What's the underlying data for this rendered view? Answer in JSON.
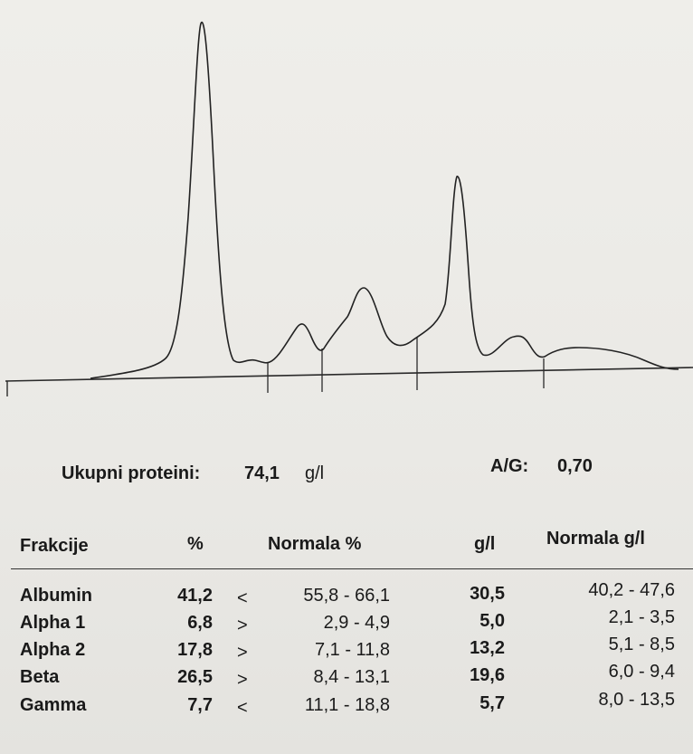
{
  "summary": {
    "total_label": "Ukupni proteini:",
    "total_value": "74,1",
    "total_unit": "g/l",
    "ag_label": "A/G:",
    "ag_value": "0,70"
  },
  "table": {
    "headers": {
      "fraction": "Frakcije",
      "percent": "%",
      "normal_percent": "Normala %",
      "gl": "g/l",
      "normal_gl": "Normala g/l"
    },
    "rows": [
      {
        "name": "Albumin",
        "percent": "41,2",
        "flag": "<",
        "normal_percent": "55,8 - 66,1",
        "gl": "30,5",
        "normal_gl": "40,2 - 47,6"
      },
      {
        "name": "Alpha 1",
        "percent": "6,8",
        "flag": ">",
        "normal_percent": "2,9 - 4,9",
        "gl": "5,0",
        "normal_gl": "2,1 - 3,5"
      },
      {
        "name": "Alpha 2",
        "percent": "17,8",
        "flag": ">",
        "normal_percent": "7,1 - 11,8",
        "gl": "13,2",
        "normal_gl": "5,1 - 8,5"
      },
      {
        "name": "Beta",
        "percent": "26,5",
        "flag": ">",
        "normal_percent": "8,4 - 13,1",
        "gl": "19,6",
        "normal_gl": "6,0 - 9,4"
      },
      {
        "name": "Gamma",
        "percent": "7,7",
        "flag": "<",
        "normal_percent": "11,1 - 18,8",
        "gl": "5,7",
        "normal_gl": "8,0 - 13,5"
      }
    ]
  }
}
